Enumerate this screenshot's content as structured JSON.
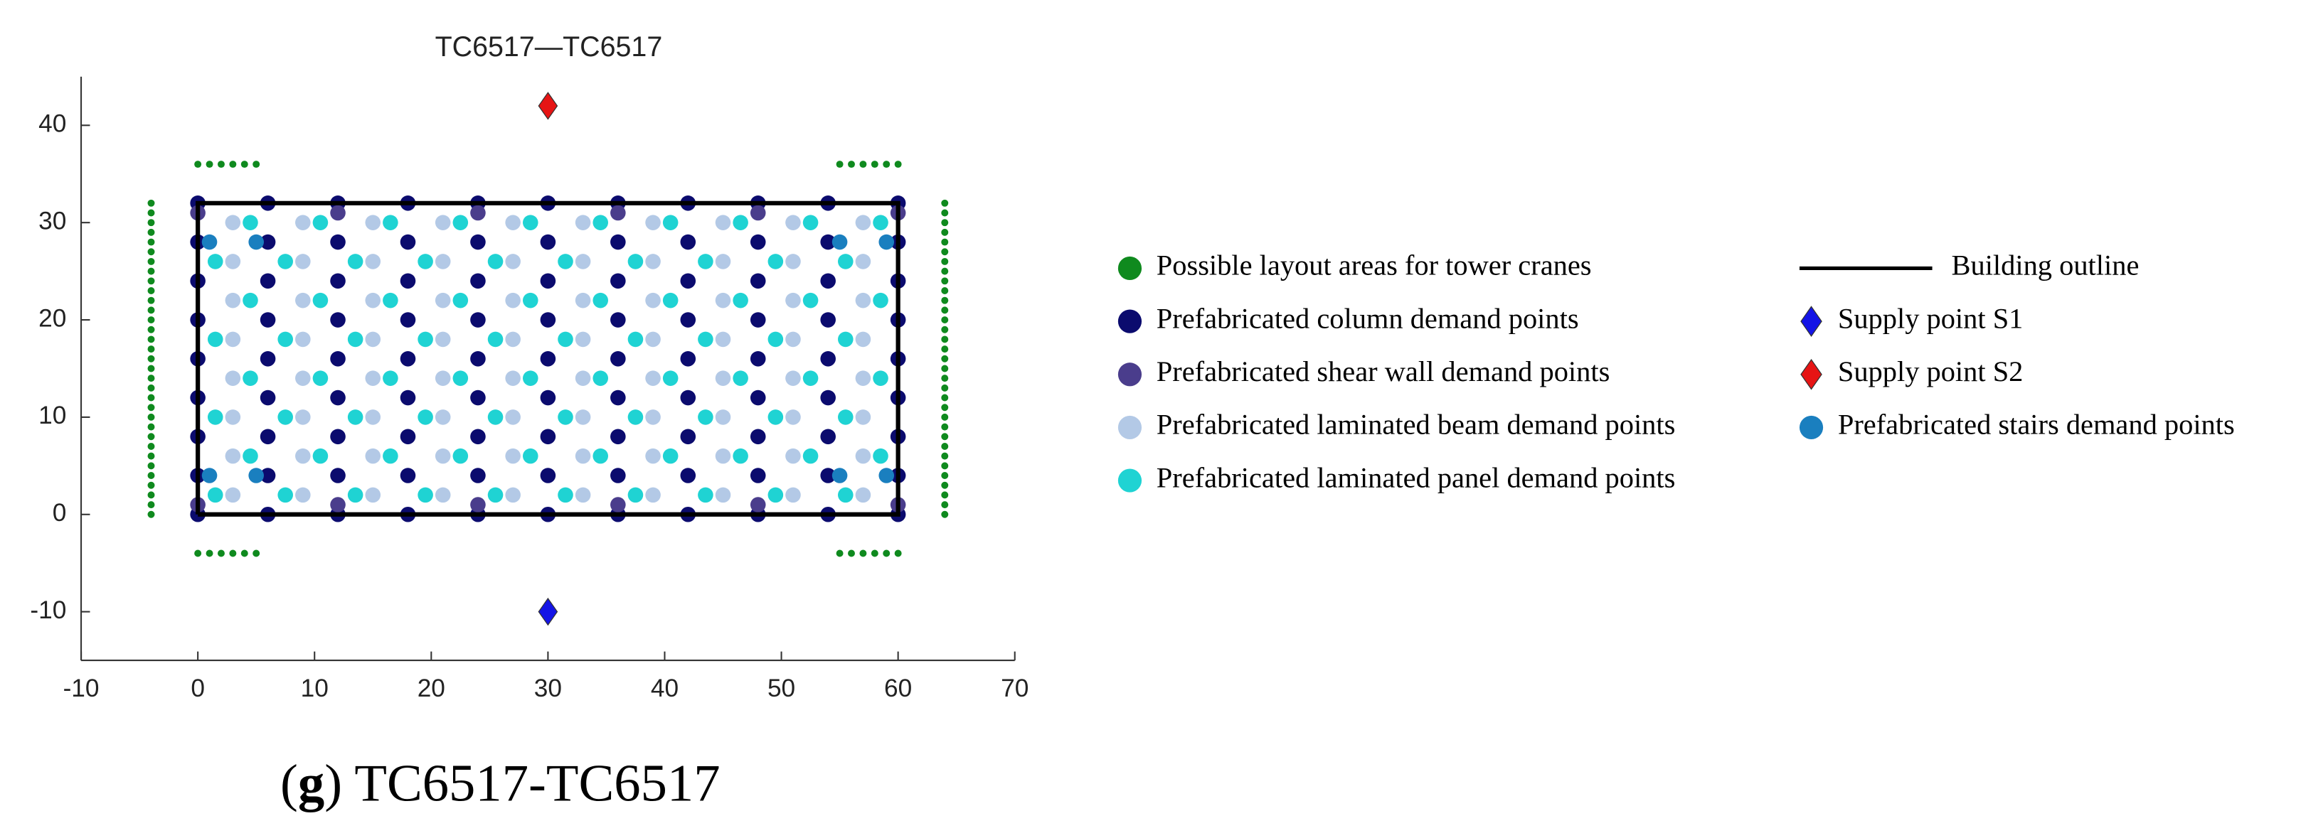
{
  "chart_data": {
    "type": "scatter",
    "title": "TC6517—TC6517",
    "caption": [
      "(",
      "g",
      ") TC6517-TC6517"
    ],
    "xlim": [
      -10,
      70
    ],
    "xticks": [
      -10,
      0,
      10,
      20,
      30,
      40,
      50,
      60,
      70
    ],
    "ylim": [
      -15,
      45
    ],
    "yticks": [
      -10,
      0,
      10,
      20,
      30,
      40
    ],
    "series": [
      {
        "name": "Possible layout areas for tower cranes",
        "color": "#0f8a1e",
        "marker": "point",
        "x": [
          -4,
          -4,
          -4,
          -4,
          -4,
          -4,
          -4,
          -4,
          -4,
          -4,
          -4,
          -4,
          -4,
          -4,
          -4,
          -4,
          -4,
          -4,
          -4,
          -4,
          -4,
          -4,
          -4,
          -4,
          -4,
          -4,
          -4,
          -4,
          -4,
          -4,
          -4,
          -4,
          -4,
          64,
          64,
          64,
          64,
          64,
          64,
          64,
          64,
          64,
          64,
          64,
          64,
          64,
          64,
          64,
          64,
          64,
          64,
          64,
          64,
          64,
          64,
          64,
          64,
          64,
          64,
          64,
          64,
          64,
          64,
          64,
          64,
          64,
          0,
          1,
          2,
          3,
          4,
          5,
          55,
          56,
          57,
          58,
          59,
          60,
          0,
          1,
          2,
          3,
          4,
          5,
          55,
          56,
          57,
          58,
          59,
          60
        ],
        "y": [
          0,
          1,
          2,
          3,
          4,
          5,
          6,
          7,
          8,
          9,
          10,
          11,
          12,
          13,
          14,
          15,
          16,
          17,
          18,
          19,
          20,
          21,
          22,
          23,
          24,
          25,
          26,
          27,
          28,
          29,
          30,
          31,
          32,
          0,
          1,
          2,
          3,
          4,
          5,
          6,
          7,
          8,
          9,
          10,
          11,
          12,
          13,
          14,
          15,
          16,
          17,
          18,
          19,
          20,
          21,
          22,
          23,
          24,
          25,
          26,
          27,
          28,
          29,
          30,
          31,
          32,
          36,
          36,
          36,
          36,
          36,
          36,
          36,
          36,
          36,
          36,
          36,
          36,
          -4,
          -4,
          -4,
          -4,
          -4,
          -4,
          -4,
          -4,
          -4,
          -4,
          -4,
          -4
        ]
      },
      {
        "name": "Prefabricated column demand points",
        "color": "#0b0b6e",
        "marker": "o",
        "x": [
          0,
          6,
          12,
          18,
          24,
          30,
          36,
          42,
          48,
          54,
          60,
          0,
          6,
          12,
          18,
          24,
          30,
          36,
          42,
          48,
          54,
          60,
          0,
          6,
          12,
          18,
          24,
          30,
          36,
          42,
          48,
          54,
          60,
          0,
          6,
          12,
          18,
          24,
          30,
          36,
          42,
          48,
          54,
          60,
          0,
          6,
          12,
          18,
          24,
          30,
          36,
          42,
          48,
          54,
          60,
          0,
          6,
          12,
          18,
          24,
          30,
          36,
          42,
          48,
          54,
          60,
          0,
          6,
          12,
          18,
          24,
          30,
          36,
          42,
          48,
          54,
          60,
          0,
          6,
          12,
          18,
          24,
          30,
          36,
          42,
          48,
          54,
          60,
          0,
          6,
          12,
          18,
          24,
          30,
          36,
          42,
          48,
          54,
          60
        ],
        "y": [
          0,
          0,
          0,
          0,
          0,
          0,
          0,
          0,
          0,
          0,
          0,
          4,
          4,
          4,
          4,
          4,
          4,
          4,
          4,
          4,
          4,
          4,
          8,
          8,
          8,
          8,
          8,
          8,
          8,
          8,
          8,
          8,
          8,
          12,
          12,
          12,
          12,
          12,
          12,
          12,
          12,
          12,
          12,
          12,
          16,
          16,
          16,
          16,
          16,
          16,
          16,
          16,
          16,
          16,
          16,
          20,
          20,
          20,
          20,
          20,
          20,
          20,
          20,
          20,
          20,
          20,
          24,
          24,
          24,
          24,
          24,
          24,
          24,
          24,
          24,
          24,
          24,
          28,
          28,
          28,
          28,
          28,
          28,
          28,
          28,
          28,
          28,
          28,
          32,
          32,
          32,
          32,
          32,
          32,
          32,
          32,
          32,
          32,
          32
        ]
      },
      {
        "name": "Prefabricated shear wall demand points",
        "color": "#4a3d8c",
        "marker": "o",
        "x": [
          0,
          12,
          24,
          36,
          48,
          60,
          0,
          12,
          24,
          36,
          48,
          60
        ],
        "y": [
          1,
          1,
          1,
          1,
          1,
          1,
          31,
          31,
          31,
          31,
          31,
          31
        ]
      },
      {
        "name": "Prefabricated laminated beam demand points",
        "color": "#b3c9e6",
        "marker": "o",
        "x": [
          3,
          9,
          15,
          21,
          27,
          33,
          39,
          45,
          51,
          57,
          3,
          9,
          15,
          21,
          27,
          33,
          39,
          45,
          51,
          57,
          3,
          9,
          15,
          21,
          27,
          33,
          39,
          45,
          51,
          57,
          3,
          9,
          15,
          21,
          27,
          33,
          39,
          45,
          51,
          57,
          3,
          9,
          15,
          21,
          27,
          33,
          39,
          45,
          51,
          57,
          3,
          9,
          15,
          21,
          27,
          33,
          39,
          45,
          51,
          57,
          3,
          9,
          15,
          21,
          27,
          33,
          39,
          45,
          51,
          57,
          3,
          9,
          15,
          21,
          27,
          33,
          39,
          45,
          51,
          57
        ],
        "y": [
          2,
          2,
          2,
          2,
          2,
          2,
          2,
          2,
          2,
          2,
          6,
          6,
          6,
          6,
          6,
          6,
          6,
          6,
          6,
          6,
          10,
          10,
          10,
          10,
          10,
          10,
          10,
          10,
          10,
          10,
          14,
          14,
          14,
          14,
          14,
          14,
          14,
          14,
          14,
          14,
          18,
          18,
          18,
          18,
          18,
          18,
          18,
          18,
          18,
          18,
          22,
          22,
          22,
          22,
          22,
          22,
          22,
          22,
          22,
          22,
          26,
          26,
          26,
          26,
          26,
          26,
          26,
          26,
          26,
          26,
          30,
          30,
          30,
          30,
          30,
          30,
          30,
          30,
          30,
          30
        ]
      },
      {
        "name": "Prefabricated laminated panel demand points",
        "color": "#1fd3d3",
        "marker": "o",
        "x": [
          1.5,
          7.5,
          13.5,
          19.5,
          25.5,
          31.5,
          37.5,
          43.5,
          49.5,
          55.5,
          4.5,
          10.5,
          16.5,
          22.5,
          28.5,
          34.5,
          40.5,
          46.5,
          52.5,
          58.5,
          1.5,
          7.5,
          13.5,
          19.5,
          25.5,
          31.5,
          37.5,
          43.5,
          49.5,
          55.5,
          4.5,
          10.5,
          16.5,
          22.5,
          28.5,
          34.5,
          40.5,
          46.5,
          52.5,
          58.5,
          1.5,
          7.5,
          13.5,
          19.5,
          25.5,
          31.5,
          37.5,
          43.5,
          49.5,
          55.5,
          4.5,
          10.5,
          16.5,
          22.5,
          28.5,
          34.5,
          40.5,
          46.5,
          52.5,
          58.5,
          1.5,
          7.5,
          13.5,
          19.5,
          25.5,
          31.5,
          37.5,
          43.5,
          49.5,
          55.5,
          4.5,
          10.5,
          16.5,
          22.5,
          28.5,
          34.5,
          40.5,
          46.5,
          52.5,
          58.5
        ],
        "y": [
          2,
          2,
          2,
          2,
          2,
          2,
          2,
          2,
          2,
          2,
          6,
          6,
          6,
          6,
          6,
          6,
          6,
          6,
          6,
          6,
          10,
          10,
          10,
          10,
          10,
          10,
          10,
          10,
          10,
          10,
          14,
          14,
          14,
          14,
          14,
          14,
          14,
          14,
          14,
          14,
          18,
          18,
          18,
          18,
          18,
          18,
          18,
          18,
          18,
          18,
          22,
          22,
          22,
          22,
          22,
          22,
          22,
          22,
          22,
          22,
          26,
          26,
          26,
          26,
          26,
          26,
          26,
          26,
          26,
          26,
          30,
          30,
          30,
          30,
          30,
          30,
          30,
          30,
          30,
          30
        ]
      },
      {
        "name": "Building outline",
        "color": "#000000",
        "marker": "line",
        "x": [
          0,
          60,
          60,
          0,
          0
        ],
        "y": [
          0,
          0,
          32,
          32,
          0
        ]
      },
      {
        "name": "Supply point S1",
        "color": "#1414e6",
        "marker": "d",
        "x": [
          30
        ],
        "y": [
          -10
        ]
      },
      {
        "name": "Supply point S2",
        "color": "#e61414",
        "marker": "d",
        "x": [
          30
        ],
        "y": [
          42
        ]
      },
      {
        "name": "Prefabricated stairs demand points",
        "color": "#1a7fbf",
        "marker": "o",
        "x": [
          1,
          5,
          55,
          59,
          1,
          5,
          55,
          59
        ],
        "y": [
          4,
          4,
          4,
          4,
          28,
          28,
          28,
          28
        ]
      }
    ]
  }
}
